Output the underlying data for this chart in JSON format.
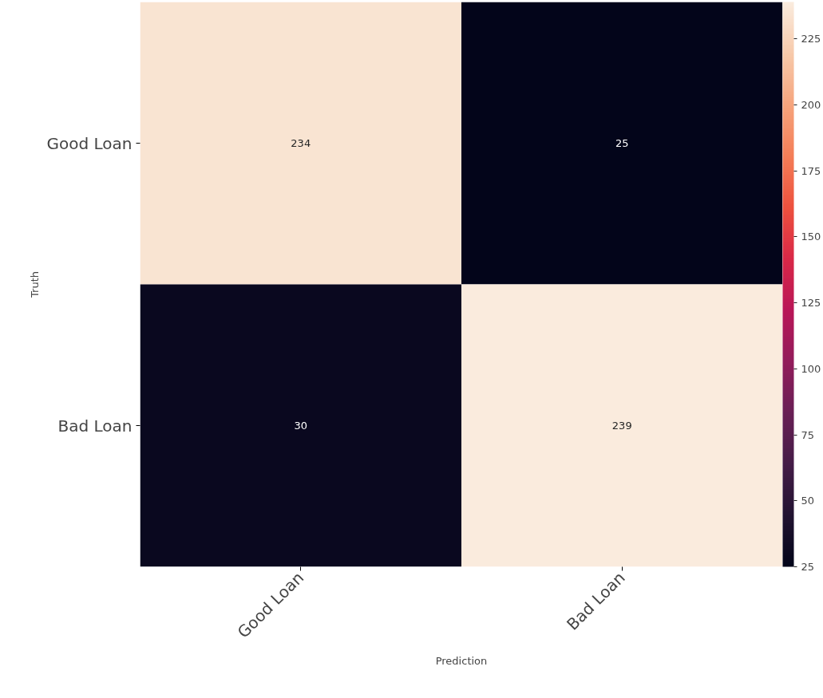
{
  "chart_data": {
    "type": "heatmap",
    "xlabel": "Prediction",
    "ylabel": "Truth",
    "categories": [
      "Good Loan",
      "Bad Loan"
    ],
    "y_categories": [
      "Good Loan",
      "Bad Loan"
    ],
    "cells": [
      [
        234,
        25
      ],
      [
        30,
        239
      ]
    ],
    "clim": [
      25,
      239
    ],
    "cticks": [
      25,
      50,
      75,
      100,
      125,
      150,
      175,
      200,
      225
    ],
    "data_labels": true
  }
}
